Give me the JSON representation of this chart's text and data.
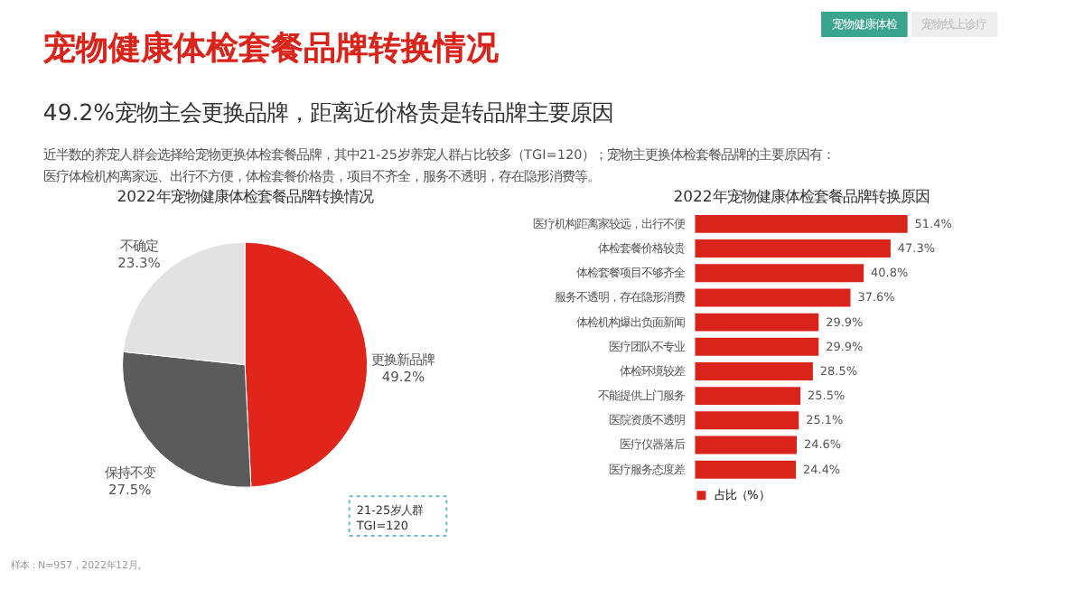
{
  "chart_data": [
    {
      "type": "other",
      "title": "宠物健康体检套餐品牌转换情况",
      "subtitle": "49.2%宠物主会更换品牌，距离近价格贵是转品牌主要原因",
      "annotations": [
        "近半数的养宠人群会选择给宠物更换体检套餐品牌，其中21-25岁养宠人群占比较多（TGI=120）；宠物主更换体检套餐品牌的主要原因有：",
        "医疗体检机构离家远、出行不方便，体检套餐价格贵，项目不齐全，服务不透明，存在隐形消费等。",
        "宠物健康体检",
        "宠物线上诊疗"
      ]
    },
    {
      "type": "pie",
      "title": "2022年宠物健康体检套餐品牌转换情况",
      "categories": [
        "更换新品牌",
        "保持不变",
        "不确定"
      ],
      "values": [
        49.2,
        27.5,
        23.3
      ],
      "value_labels": [
        "49.2%",
        "27.5%",
        "23.3%"
      ],
      "colors": [
        "#e0251b",
        "#5b5b5b",
        "#e2e2e2"
      ],
      "legend": false,
      "annotations": [
        "21-25岁人群 TGI=120",
        "样本：N=957，2022年12月。"
      ]
    },
    {
      "type": "bar",
      "orientation": "horizontal",
      "title": "2022年宠物健康体检套餐品牌转换原因",
      "categories": [
        "医疗机构距离家较远，出行不便",
        "体检套餐价格较贵",
        "体检套餐项目不够齐全",
        "服务不透明，存在隐形消费",
        "体检机构爆出负面新闻",
        "医疗团队不专业",
        "体检环境较差",
        "不能提供上门服务",
        "医院资质不透明",
        "医疗仪器落后",
        "医疗服务态度差"
      ],
      "series": [
        {
          "name": "占比（%）",
          "color": "#d9241b",
          "values": [
            51.4,
            47.3,
            40.8,
            37.6,
            29.9,
            29.9,
            28.5,
            25.5,
            25.1,
            24.6,
            24.4
          ],
          "value_labels": [
            "51.4%",
            "47.3%",
            "40.8%",
            "37.6%",
            "29.9%",
            "29.9%",
            "28.5%",
            "25.5%",
            "25.1%",
            "24.6%",
            "24.4%"
          ]
        }
      ],
      "legend": "bottom"
    }
  ]
}
